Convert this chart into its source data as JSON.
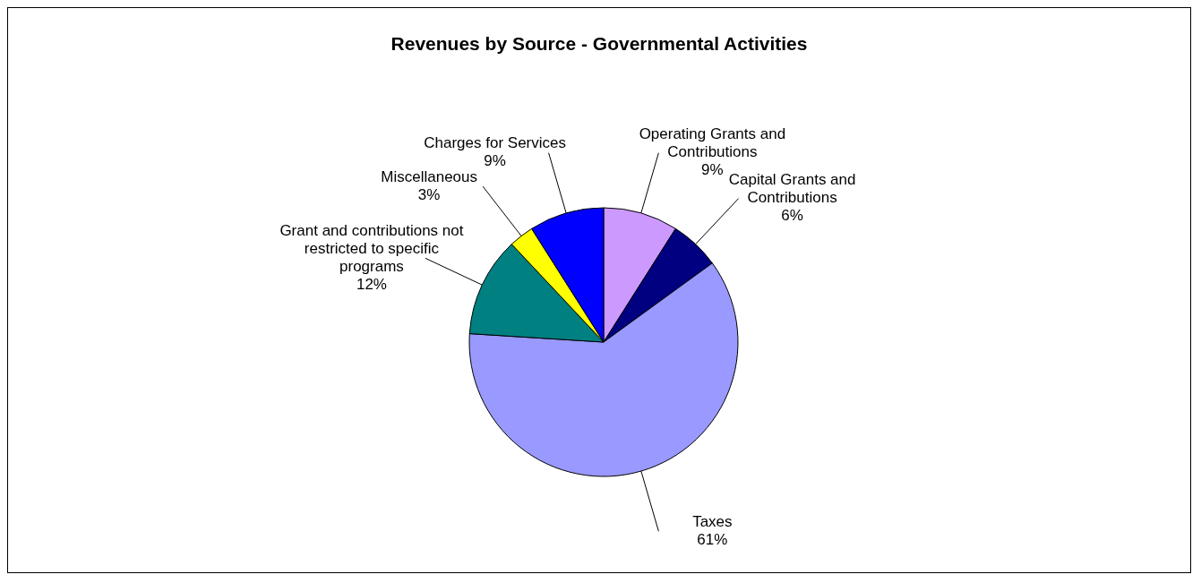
{
  "chart_data": {
    "type": "pie",
    "title": "Revenues by Source - Governmental Activities",
    "categories": [
      "Operating Grants and Contributions",
      "Capital Grants and Contributions",
      "Taxes",
      "Grant and contributions not restricted to specific programs",
      "Miscellaneous",
      "Charges for Services"
    ],
    "values": [
      9,
      6,
      61,
      12,
      3,
      9
    ],
    "colors": [
      "#cc99ff",
      "#000080",
      "#9999ff",
      "#008080",
      "#ffff00",
      "#0000ff"
    ],
    "value_labels": [
      "9%",
      "6%",
      "61%",
      "12%",
      "3%",
      "9%"
    ]
  }
}
